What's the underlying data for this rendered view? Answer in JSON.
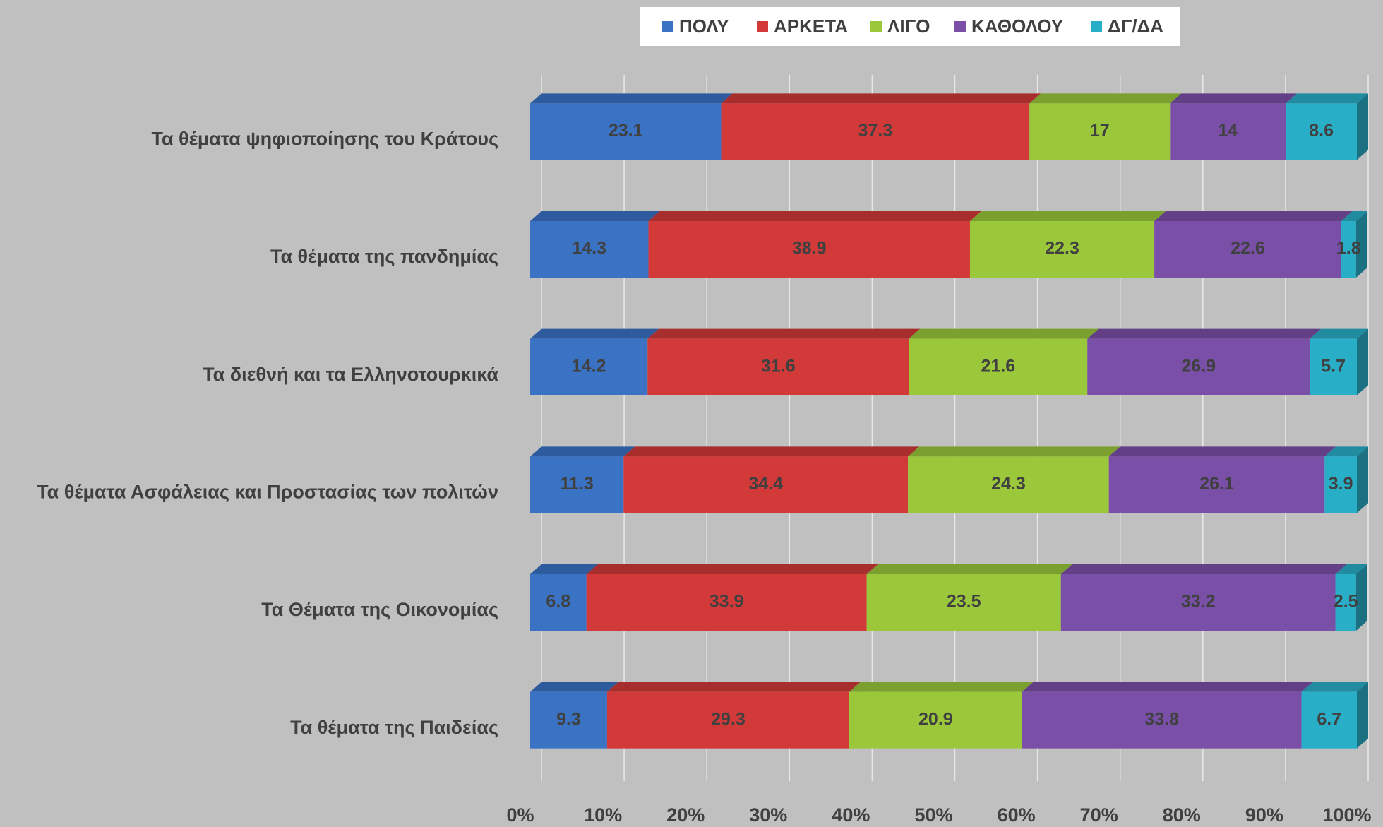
{
  "chart_data": {
    "type": "stacked-bar-horizontal",
    "categories": [
      "Τα θέματα ψηφιοποίησης του Κράτους",
      "Τα θέματα της πανδημίας",
      "Τα διεθνή και τα Ελληνοτουρκικά",
      "Τα θέματα Ασφάλειας και Προστασίας των πολιτών",
      "Τα Θέματα της Οικονομίας",
      "Τα θέματα της Παιδείας"
    ],
    "series": [
      {
        "name": "ΠΟΛΥ",
        "color": "#3a72c4",
        "values": [
          23.1,
          14.3,
          14.2,
          11.3,
          6.8,
          9.3
        ]
      },
      {
        "name": "ΑΡΚΕΤΑ",
        "color": "#d23a3a",
        "values": [
          37.3,
          38.9,
          31.6,
          34.4,
          33.9,
          29.3
        ]
      },
      {
        "name": "ΛΙΓΟ",
        "color": "#9bc83b",
        "values": [
          17.0,
          22.3,
          21.6,
          24.3,
          23.5,
          20.9
        ]
      },
      {
        "name": "ΚΑΘΟΛΟΥ",
        "color": "#7a4fa8",
        "values": [
          14.0,
          22.6,
          26.9,
          26.1,
          33.2,
          33.8
        ]
      },
      {
        "name": "ΔΓ/ΔΑ",
        "color": "#29aec8",
        "values": [
          8.6,
          1.8,
          5.7,
          3.9,
          2.5,
          6.7
        ]
      }
    ],
    "xlim": [
      0,
      100
    ],
    "xticks": [
      {
        "value": 0,
        "label": "0%"
      },
      {
        "value": 10,
        "label": "10%"
      },
      {
        "value": 20,
        "label": "20%"
      },
      {
        "value": 30,
        "label": "30%"
      },
      {
        "value": 40,
        "label": "40%"
      },
      {
        "value": 50,
        "label": "50%"
      },
      {
        "value": 60,
        "label": "60%"
      },
      {
        "value": 70,
        "label": "70%"
      },
      {
        "value": 80,
        "label": "80%"
      },
      {
        "value": 90,
        "label": "90%"
      },
      {
        "value": 100,
        "label": "100%"
      }
    ],
    "grid": true,
    "legend": "top"
  }
}
